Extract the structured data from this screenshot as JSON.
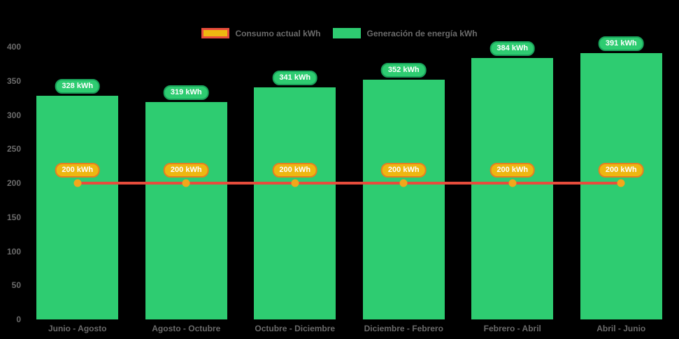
{
  "chart_data": {
    "type": "bar",
    "title": "",
    "xlabel": "",
    "ylabel": "",
    "categories": [
      "Junio - Agosto",
      "Agosto - Octubre",
      "Octubre - Diciembre",
      "Diciembre - Febrero",
      "Febrero - Abril",
      "Abril - Junio"
    ],
    "series": [
      {
        "name": "Generación de energía kWh",
        "type": "bar",
        "values": [
          328,
          319,
          341,
          352,
          384,
          391
        ],
        "labels": [
          "328 kWh",
          "319 kWh",
          "341 kWh",
          "352 kWh",
          "384 kWh",
          "391 kWh"
        ],
        "color": "#2ecc71",
        "label_bg": "#2ecc71",
        "label_border": "#1aa35b"
      },
      {
        "name": "Consumo actual kWh",
        "type": "line",
        "values": [
          200,
          200,
          200,
          200,
          200,
          200
        ],
        "labels": [
          "200 kWh",
          "200 kWh",
          "200 kWh",
          "200 kWh",
          "200 kWh",
          "200 kWh"
        ],
        "color": "#e74c3c",
        "point_color": "#f2a71b",
        "label_bg": "#eeb711",
        "label_border": "#e67e22"
      }
    ],
    "value_suffix": " kWh",
    "ylim": [
      0,
      400
    ],
    "ytick_step": 50,
    "yticks": [
      "0",
      "50",
      "100",
      "150",
      "200",
      "250",
      "300",
      "350",
      "400"
    ],
    "grid": false,
    "legend_position": "top",
    "legend": [
      {
        "label": "Consumo actual kWh",
        "swatch_fill": "#eeb711",
        "swatch_border": "#e74c3c"
      },
      {
        "label": "Generación de energía kWh",
        "swatch_fill": "#2ecc71",
        "swatch_border": "#2ecc71"
      }
    ],
    "axis_text_color": "#6b6b6b",
    "label_text_color": "#ffffff",
    "background": "#000000"
  }
}
